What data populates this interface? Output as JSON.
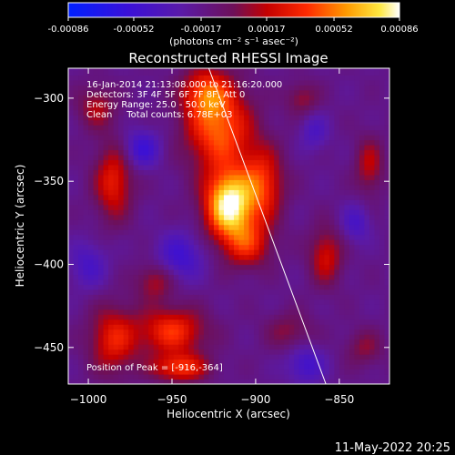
{
  "colorbar": {
    "tick_labels": [
      "-0.00086",
      "-0.00052",
      "-0.00017",
      "0.00017",
      "0.00052",
      "0.00086"
    ],
    "tick_values": [
      -0.00086,
      -0.00052,
      -0.00017,
      0.00017,
      0.00052,
      0.00086
    ],
    "unit_label": "(photons cm⁻² s⁻¹ asec⁻²)",
    "range": [
      -0.00086,
      0.00086
    ],
    "colormap": "rainbow-blue-purple-red-orange-yellow-white"
  },
  "chart_data": {
    "type": "heatmap",
    "title": "Reconstructed RHESSI Image",
    "xlabel": "Heliocentric X (arcsec)",
    "ylabel": "Heliocentric Y (arcsec)",
    "xlim": [
      -1012,
      -820
    ],
    "ylim": [
      -472,
      -282
    ],
    "x_ticks": [
      -1000,
      -950,
      -900,
      -850
    ],
    "x_tick_labels": [
      "−1000",
      "−950",
      "−900",
      "−850"
    ],
    "y_ticks": [
      -300,
      -350,
      -400,
      -450
    ],
    "y_tick_labels": [
      "−300",
      "−350",
      "−400",
      "−450"
    ],
    "limb_line": [
      [
        -928,
        -282
      ],
      [
        -858,
        -472
      ]
    ],
    "peak": {
      "x": -916,
      "y": -364,
      "value": 0.00086
    },
    "sources": [
      {
        "x": -916,
        "y": -364,
        "sx": 10,
        "sy": 14,
        "amp": 1.0
      },
      {
        "x": -922,
        "y": -318,
        "sx": 14,
        "sy": 18,
        "amp": 0.62
      },
      {
        "x": -930,
        "y": -296,
        "sx": 10,
        "sy": 10,
        "amp": 0.45
      },
      {
        "x": -896,
        "y": -352,
        "sx": 9,
        "sy": 16,
        "amp": 0.5
      },
      {
        "x": -905,
        "y": -388,
        "sx": 10,
        "sy": 10,
        "amp": 0.42
      },
      {
        "x": -985,
        "y": -350,
        "sx": 8,
        "sy": 16,
        "amp": 0.45
      },
      {
        "x": -995,
        "y": -305,
        "sx": 8,
        "sy": 9,
        "amp": 0.3
      },
      {
        "x": -985,
        "y": -445,
        "sx": 10,
        "sy": 14,
        "amp": 0.45
      },
      {
        "x": -950,
        "y": -440,
        "sx": 14,
        "sy": 10,
        "amp": 0.52
      },
      {
        "x": -945,
        "y": -462,
        "sx": 12,
        "sy": 6,
        "amp": 0.5
      },
      {
        "x": -960,
        "y": -410,
        "sx": 8,
        "sy": 8,
        "amp": 0.3
      },
      {
        "x": -858,
        "y": -395,
        "sx": 7,
        "sy": 12,
        "amp": 0.38
      },
      {
        "x": -832,
        "y": -340,
        "sx": 6,
        "sy": 12,
        "amp": 0.32
      },
      {
        "x": -872,
        "y": -300,
        "sx": 7,
        "sy": 7,
        "amp": 0.25
      },
      {
        "x": -880,
        "y": -440,
        "sx": 10,
        "sy": 8,
        "amp": 0.22
      },
      {
        "x": -835,
        "y": -450,
        "sx": 8,
        "sy": 8,
        "amp": 0.22
      },
      {
        "x": -968,
        "y": -330,
        "sx": 8,
        "sy": 8,
        "amp": -0.35
      },
      {
        "x": -945,
        "y": -395,
        "sx": 10,
        "sy": 10,
        "amp": -0.32
      },
      {
        "x": -870,
        "y": -460,
        "sx": 8,
        "sy": 8,
        "amp": -0.3
      },
      {
        "x": -1000,
        "y": -400,
        "sx": 8,
        "sy": 10,
        "amp": -0.25
      },
      {
        "x": -865,
        "y": -320,
        "sx": 6,
        "sy": 8,
        "amp": -0.22
      },
      {
        "x": -840,
        "y": -375,
        "sx": 6,
        "sy": 8,
        "amp": -0.25
      }
    ],
    "annotations": [
      "16-Jan-2014 21:13:08.000 to 21:16:20.000",
      "Detectors: 3F 4F 5F 6F 7F 8F, Att 0",
      "Energy Range: 25.0 - 50.0 keV",
      "Clean     Total counts: 6.78E+03",
      "Position of Peak = [-916,-364]"
    ]
  },
  "footer": {
    "date": "11-May-2022 20:25"
  }
}
